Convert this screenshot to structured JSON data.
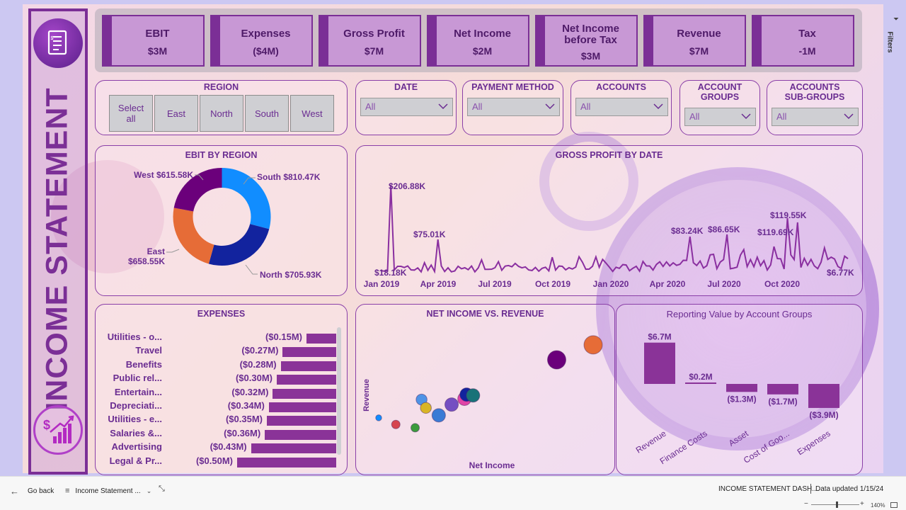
{
  "report_title": "INCOME STATEMENT",
  "kpis": [
    {
      "label": "EBIT",
      "value": "$3M"
    },
    {
      "label": "Expenses",
      "value": "($4M)"
    },
    {
      "label": "Gross Profit",
      "value": "$7M"
    },
    {
      "label": "Net Income",
      "value": "$2M"
    },
    {
      "label": "Net Income before Tax",
      "value": "$3M"
    },
    {
      "label": "Revenue",
      "value": "$7M"
    },
    {
      "label": "Tax",
      "value": "-1M"
    }
  ],
  "filters": {
    "region": {
      "title": "REGION",
      "buttons": [
        "Select all",
        "East",
        "North",
        "South",
        "West"
      ]
    },
    "date": {
      "title": "DATE",
      "value": "All"
    },
    "payment": {
      "title": "PAYMENT METHOD",
      "value": "All"
    },
    "accounts": {
      "title": "ACCOUNTS",
      "value": "All"
    },
    "groups": {
      "title_line1": "ACCOUNT",
      "title_line2": "GROUPS",
      "value": "All"
    },
    "subgroups": {
      "title_line1": "ACCOUNTS",
      "title_line2": "SUB-GROUPS",
      "value": "All"
    }
  },
  "ebit_by_region": {
    "title": "EBIT BY REGION",
    "slices": [
      {
        "name": "South",
        "label": "South $810.47K",
        "value": 810.47,
        "color": "#118dff"
      },
      {
        "name": "North",
        "label": "North $705.93K",
        "value": 705.93,
        "color": "#12239e"
      },
      {
        "name": "East",
        "label_line1": "East",
        "label_line2": "$658.55K",
        "value": 658.55,
        "color": "#e66c37"
      },
      {
        "name": "West",
        "label": "West $615.58K",
        "value": 615.58,
        "color": "#6b007b"
      }
    ]
  },
  "gross_profit_by_date": {
    "title": "GROSS PROFIT BY DATE",
    "x_ticks": [
      "Jan 2019",
      "Apr 2019",
      "Jul 2019",
      "Oct 2019",
      "Jan 2020",
      "Apr 2020",
      "Jul 2020",
      "Oct 2020"
    ],
    "annotations": [
      {
        "text": "$206.88K"
      },
      {
        "text": "$75.01K"
      },
      {
        "text": "$18.18K"
      },
      {
        "text": "$83.24K"
      },
      {
        "text": "$86.65K"
      },
      {
        "text": "$119.55K"
      },
      {
        "text": "$119.69K"
      },
      {
        "text": "$6.77K"
      }
    ]
  },
  "expenses": {
    "title": "EXPENSES",
    "rows": [
      {
        "category": "Utilities - o...",
        "amount": "($0.15M)",
        "value": 0.15
      },
      {
        "category": "Travel",
        "amount": "($0.27M)",
        "value": 0.27
      },
      {
        "category": "Benefits",
        "amount": "($0.28M)",
        "value": 0.28
      },
      {
        "category": "Public rel...",
        "amount": "($0.30M)",
        "value": 0.3
      },
      {
        "category": "Entertain...",
        "amount": "($0.32M)",
        "value": 0.32
      },
      {
        "category": "Depreciati...",
        "amount": "($0.34M)",
        "value": 0.34
      },
      {
        "category": "Utilities - e...",
        "amount": "($0.35M)",
        "value": 0.35
      },
      {
        "category": "Salaries &...",
        "amount": "($0.36M)",
        "value": 0.36
      },
      {
        "category": "Advertising",
        "amount": "($0.43M)",
        "value": 0.43
      },
      {
        "category": "Legal & Pr...",
        "amount": "($0.50M)",
        "value": 0.5
      }
    ]
  },
  "net_income_vs_revenue": {
    "title": "NET INCOME VS. REVENUE",
    "xlabel": "Net Income",
    "ylabel": "Revenue"
  },
  "reporting_value": {
    "title": "Reporting Value by Account Groups",
    "bars": [
      {
        "category": "Revenue",
        "label": "$6.7M",
        "value": 6.7
      },
      {
        "category": "Finance Costs",
        "label": "$0.2M",
        "value": 0.2
      },
      {
        "category": "Asset",
        "label": "($1.3M)",
        "value": -1.3
      },
      {
        "category": "Cost of Goo...",
        "label": "($1.7M)",
        "value": -1.7
      },
      {
        "category": "Expenses",
        "label": "($3.9M)",
        "value": -3.9
      }
    ]
  },
  "footer": {
    "back": "Go back",
    "page_selector": "Income Statement ...",
    "report_name": "INCOME STATEMENT DASH...",
    "updated": "Data updated 1/15/24",
    "zoom": "140%",
    "filters_pane": "Filters"
  },
  "colors": {
    "accent": "#7b2f96",
    "bar": "#8a3398",
    "panel_border": "#8a3fa8"
  },
  "chart_data": [
    {
      "type": "pie",
      "title": "EBIT BY REGION",
      "categories": [
        "South",
        "North",
        "East",
        "West"
      ],
      "values": [
        810.47,
        705.93,
        658.55,
        615.58
      ],
      "unit": "$K"
    },
    {
      "type": "line",
      "title": "GROSS PROFIT BY DATE",
      "x": [
        "Jan 2019",
        "Apr 2019",
        "Jul 2019",
        "Oct 2019",
        "Jan 2020",
        "Apr 2020",
        "Jul 2020",
        "Oct 2020"
      ],
      "series": [
        {
          "values": [
            18,
            75,
            18,
            20,
            45,
            83,
            87,
            120
          ]
        }
      ],
      "peaks_labeled": [
        "$206.88K",
        "$75.01K",
        "$18.18K",
        "$83.24K",
        "$86.65K",
        "$119.55K",
        "$119.69K",
        "$6.77K"
      ]
    },
    {
      "type": "bar",
      "title": "EXPENSES",
      "categories": [
        "Utilities - o...",
        "Travel",
        "Benefits",
        "Public rel...",
        "Entertain...",
        "Depreciati...",
        "Utilities - e...",
        "Salaries &...",
        "Advertising",
        "Legal & Pr..."
      ],
      "values": [
        -0.15,
        -0.27,
        -0.28,
        -0.3,
        -0.32,
        -0.34,
        -0.35,
        -0.36,
        -0.43,
        -0.5
      ],
      "unit": "$M"
    },
    {
      "type": "scatter",
      "title": "NET INCOME VS. REVENUE",
      "xlabel": "Net Income",
      "ylabel": "Revenue",
      "points": [
        {
          "x": 0.0,
          "y": 0.36,
          "color": "#118dff",
          "size": 1
        },
        {
          "x": 0.08,
          "y": 0.28,
          "color": "#d64550",
          "size": 2
        },
        {
          "x": 0.17,
          "y": 0.24,
          "color": "#3c9b3c",
          "size": 2
        },
        {
          "x": 0.2,
          "y": 0.58,
          "color": "#4e93e6",
          "size": 3
        },
        {
          "x": 0.22,
          "y": 0.48,
          "color": "#d9b526",
          "size": 3
        },
        {
          "x": 0.28,
          "y": 0.39,
          "color": "#3a7bd5",
          "size": 4
        },
        {
          "x": 0.34,
          "y": 0.52,
          "color": "#744ec2",
          "size": 4
        },
        {
          "x": 0.4,
          "y": 0.59,
          "color": "#e044a7",
          "size": 4
        },
        {
          "x": 0.41,
          "y": 0.64,
          "color": "#12239e",
          "size": 4
        },
        {
          "x": 0.44,
          "y": 0.63,
          "color": "#197278",
          "size": 4
        },
        {
          "x": 0.83,
          "y": 1.06,
          "color": "#6b007b",
          "size": 6
        },
        {
          "x": 1.0,
          "y": 1.24,
          "color": "#e66c37",
          "size": 6
        }
      ]
    },
    {
      "type": "bar",
      "title": "Reporting Value by Account Groups",
      "categories": [
        "Revenue",
        "Finance Costs",
        "Asset",
        "Cost of Goo...",
        "Expenses"
      ],
      "values": [
        6.7,
        0.2,
        -1.3,
        -1.7,
        -3.9
      ],
      "unit": "$M"
    }
  ]
}
